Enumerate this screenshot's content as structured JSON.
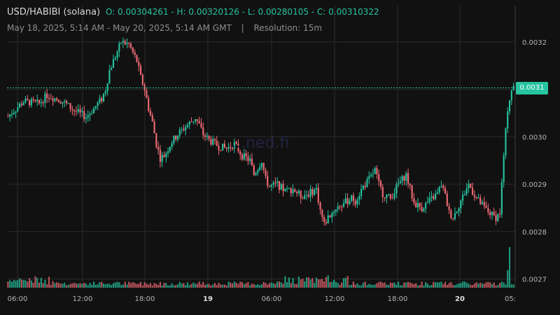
{
  "header": {
    "pair": "USD/HABIBI (solana)",
    "ohlc": "O: 0.00304261 - H: 0.00320126 - L: 0.00280105 - C: 0.00310322",
    "range": "May 18, 2025, 5:14 AM - May 20, 2025, 5:14 AM GMT",
    "separator": "|",
    "resolution": "Resolution: 15m",
    "watermark": "...ned.fi"
  },
  "colors": {
    "up": "#26c4a0",
    "down": "#f06a74",
    "grid": "#2a2a2a",
    "background": "#111111"
  },
  "chart_data": {
    "type": "candlestick",
    "last_price_label": "0.0031",
    "last_price": 0.00310322,
    "ylim": [
      0.00267,
      0.00329
    ],
    "y_ticks": [
      "0.0032",
      "0.0031",
      "0.0030",
      "0.0029",
      "0.0028",
      "0.0027"
    ],
    "x_ticks": [
      "06:00",
      "12:00",
      "18:00",
      "19",
      "06:00",
      "12:00",
      "18:00",
      "20",
      "05:"
    ],
    "x_ticks_bold": [
      false,
      false,
      false,
      true,
      false,
      false,
      false,
      true,
      false
    ],
    "grid": true,
    "close_path": [
      [
        0,
        0.003043
      ],
      [
        8,
        0.003075
      ],
      [
        16,
        0.00307
      ],
      [
        20,
        0.003088
      ],
      [
        28,
        0.003075
      ],
      [
        34,
        0.003055
      ],
      [
        40,
        0.003042
      ],
      [
        42,
        0.00305
      ],
      [
        48,
        0.00308
      ],
      [
        50,
        0.0031
      ],
      [
        52,
        0.00314
      ],
      [
        56,
        0.00318
      ],
      [
        58,
        0.0032
      ],
      [
        62,
        0.003195
      ],
      [
        66,
        0.00316
      ],
      [
        68,
        0.003125
      ],
      [
        70,
        0.0031
      ],
      [
        72,
        0.00306
      ],
      [
        74,
        0.00303
      ],
      [
        76,
        0.002985
      ],
      [
        78,
        0.002955
      ],
      [
        80,
        0.00296
      ],
      [
        84,
        0.00299
      ],
      [
        88,
        0.00301
      ],
      [
        92,
        0.003025
      ],
      [
        96,
        0.00304
      ],
      [
        98,
        0.003025
      ],
      [
        100,
        0.003005
      ],
      [
        104,
        0.00299
      ],
      [
        108,
        0.00298
      ],
      [
        112,
        0.002975
      ],
      [
        116,
        0.002985
      ],
      [
        120,
        0.00296
      ],
      [
        124,
        0.00295
      ],
      [
        126,
        0.00292
      ],
      [
        128,
        0.002935
      ],
      [
        130,
        0.00295
      ],
      [
        132,
        0.00291
      ],
      [
        134,
        0.002895
      ],
      [
        138,
        0.0029
      ],
      [
        142,
        0.002885
      ],
      [
        146,
        0.00289
      ],
      [
        150,
        0.002875
      ],
      [
        154,
        0.00288
      ],
      [
        158,
        0.00289
      ],
      [
        160,
        0.002845
      ],
      [
        162,
        0.002815
      ],
      [
        164,
        0.00283
      ],
      [
        168,
        0.00285
      ],
      [
        172,
        0.00286
      ],
      [
        176,
        0.00287
      ],
      [
        178,
        0.002865
      ],
      [
        182,
        0.002895
      ],
      [
        186,
        0.002915
      ],
      [
        188,
        0.00293
      ],
      [
        190,
        0.0029
      ],
      [
        192,
        0.00288
      ],
      [
        196,
        0.00287
      ],
      [
        200,
        0.0029
      ],
      [
        204,
        0.00292
      ],
      [
        206,
        0.00289
      ],
      [
        208,
        0.00286
      ],
      [
        212,
        0.00285
      ],
      [
        216,
        0.002865
      ],
      [
        220,
        0.00288
      ],
      [
        222,
        0.0029
      ],
      [
        224,
        0.002875
      ],
      [
        226,
        0.00284
      ],
      [
        228,
        0.00283
      ],
      [
        232,
        0.002865
      ],
      [
        236,
        0.0029
      ],
      [
        240,
        0.00287
      ],
      [
        244,
        0.00285
      ],
      [
        248,
        0.002835
      ],
      [
        250,
        0.00283
      ],
      [
        252,
        0.00284
      ],
      [
        254,
        0.00296
      ],
      [
        256,
        0.00306
      ],
      [
        258,
        0.0031
      ],
      [
        259,
        0.003103
      ]
    ]
  }
}
